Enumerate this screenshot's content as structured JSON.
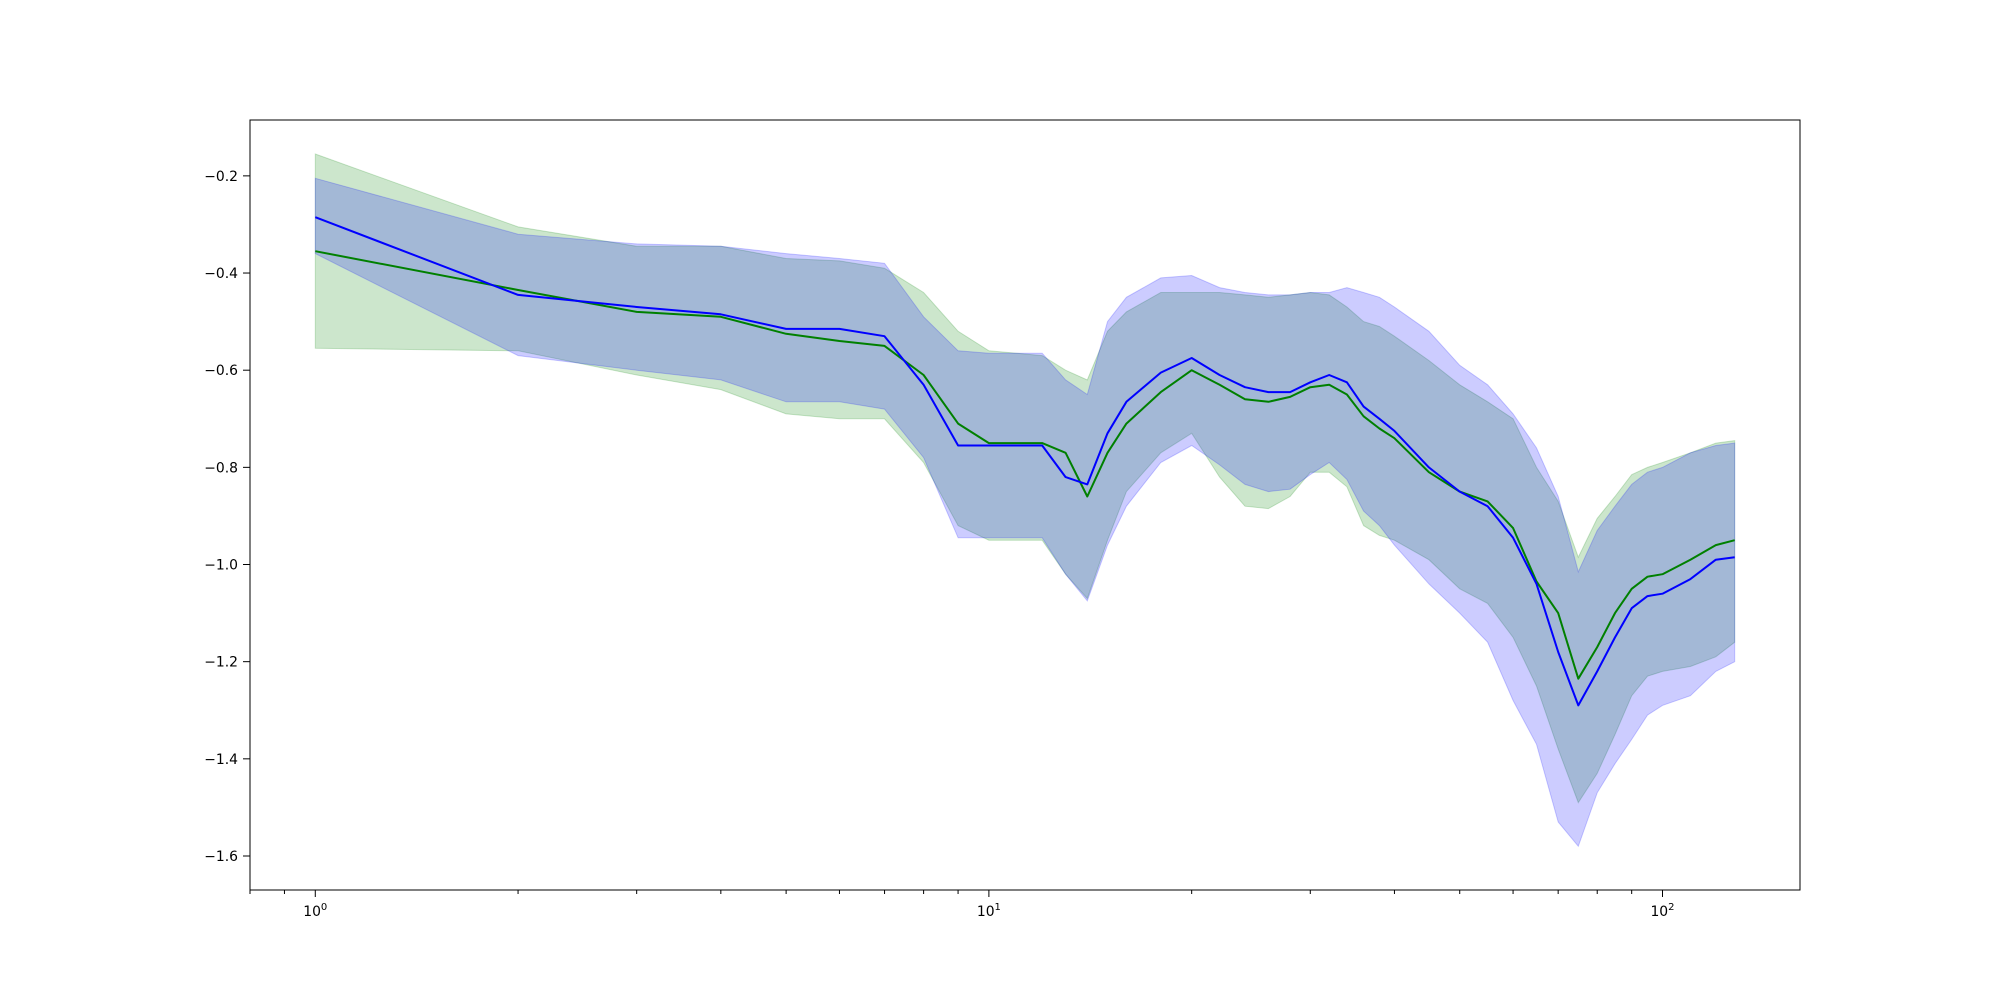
{
  "chart_data": {
    "type": "line",
    "title": "",
    "xlabel": "",
    "ylabel": "",
    "xscale": "log",
    "xlim": [
      0.8,
      160
    ],
    "ylim": [
      -1.67,
      -0.085
    ],
    "grid": false,
    "legend": "none",
    "x_ticks": [
      {
        "value": 1,
        "base": "10",
        "exp": "0"
      },
      {
        "value": 10,
        "base": "10",
        "exp": "1"
      },
      {
        "value": 100,
        "base": "10",
        "exp": "2"
      }
    ],
    "y_ticks": [
      {
        "value": -0.2,
        "label": "−0.2"
      },
      {
        "value": -0.4,
        "label": "−0.4"
      },
      {
        "value": -0.6,
        "label": "−0.6"
      },
      {
        "value": -0.8,
        "label": "−0.8"
      },
      {
        "value": -1.0,
        "label": "−1.0"
      },
      {
        "value": -1.2,
        "label": "−1.2"
      },
      {
        "value": -1.4,
        "label": "−1.4"
      },
      {
        "value": -1.6,
        "label": "−1.6"
      }
    ],
    "series": [
      {
        "color": "#008000",
        "band_color": "#008000",
        "band_opacity": 0.2,
        "x": [
          1,
          2,
          3,
          4,
          5,
          6,
          7,
          8,
          9,
          10,
          11,
          12,
          13,
          14,
          15,
          16,
          18,
          20,
          22,
          24,
          26,
          28,
          30,
          32,
          34,
          36,
          38,
          40,
          45,
          50,
          55,
          60,
          65,
          70,
          75,
          80,
          85,
          90,
          95,
          100,
          110,
          120,
          128
        ],
        "y": [
          -0.355,
          -0.435,
          -0.48,
          -0.49,
          -0.525,
          -0.54,
          -0.55,
          -0.61,
          -0.71,
          -0.75,
          -0.75,
          -0.75,
          -0.77,
          -0.86,
          -0.77,
          -0.71,
          -0.645,
          -0.6,
          -0.63,
          -0.66,
          -0.665,
          -0.655,
          -0.635,
          -0.63,
          -0.65,
          -0.695,
          -0.72,
          -0.74,
          -0.81,
          -0.85,
          -0.87,
          -0.925,
          -1.035,
          -1.1,
          -1.235,
          -1.17,
          -1.1,
          -1.05,
          -1.025,
          -1.02,
          -0.99,
          -0.96,
          -0.95
        ],
        "lower": [
          -0.555,
          -0.56,
          -0.61,
          -0.64,
          -0.69,
          -0.7,
          -0.7,
          -0.79,
          -0.92,
          -0.95,
          -0.95,
          -0.95,
          -1.02,
          -1.07,
          -0.95,
          -0.85,
          -0.77,
          -0.73,
          -0.82,
          -0.88,
          -0.885,
          -0.86,
          -0.81,
          -0.81,
          -0.84,
          -0.92,
          -0.94,
          -0.95,
          -0.99,
          -1.05,
          -1.08,
          -1.15,
          -1.25,
          -1.38,
          -1.49,
          -1.43,
          -1.35,
          -1.27,
          -1.23,
          -1.22,
          -1.21,
          -1.19,
          -1.16
        ],
        "upper": [
          -0.155,
          -0.305,
          -0.345,
          -0.345,
          -0.37,
          -0.375,
          -0.39,
          -0.44,
          -0.52,
          -0.56,
          -0.565,
          -0.57,
          -0.6,
          -0.62,
          -0.52,
          -0.48,
          -0.44,
          -0.44,
          -0.44,
          -0.445,
          -0.45,
          -0.445,
          -0.44,
          -0.445,
          -0.47,
          -0.5,
          -0.51,
          -0.53,
          -0.58,
          -0.63,
          -0.665,
          -0.7,
          -0.8,
          -0.87,
          -0.985,
          -0.905,
          -0.86,
          -0.815,
          -0.8,
          -0.79,
          -0.77,
          -0.75,
          -0.745
        ]
      },
      {
        "color": "#0000ff",
        "band_color": "#0000ff",
        "band_opacity": 0.2,
        "x": [
          1,
          2,
          3,
          4,
          5,
          6,
          7,
          8,
          9,
          10,
          11,
          12,
          13,
          14,
          15,
          16,
          18,
          20,
          22,
          24,
          26,
          28,
          30,
          32,
          34,
          36,
          38,
          40,
          45,
          50,
          55,
          60,
          65,
          70,
          75,
          80,
          85,
          90,
          95,
          100,
          110,
          120,
          128
        ],
        "y": [
          -0.285,
          -0.445,
          -0.47,
          -0.485,
          -0.515,
          -0.515,
          -0.53,
          -0.63,
          -0.755,
          -0.755,
          -0.755,
          -0.755,
          -0.82,
          -0.835,
          -0.73,
          -0.665,
          -0.605,
          -0.575,
          -0.61,
          -0.635,
          -0.645,
          -0.645,
          -0.625,
          -0.61,
          -0.625,
          -0.675,
          -0.7,
          -0.725,
          -0.8,
          -0.85,
          -0.88,
          -0.945,
          -1.04,
          -1.18,
          -1.29,
          -1.22,
          -1.15,
          -1.09,
          -1.065,
          -1.06,
          -1.03,
          -0.99,
          -0.985
        ],
        "lower": [
          -0.36,
          -0.57,
          -0.6,
          -0.62,
          -0.665,
          -0.665,
          -0.68,
          -0.78,
          -0.945,
          -0.945,
          -0.945,
          -0.945,
          -1.02,
          -1.075,
          -0.96,
          -0.88,
          -0.79,
          -0.755,
          -0.795,
          -0.835,
          -0.85,
          -0.845,
          -0.815,
          -0.79,
          -0.825,
          -0.89,
          -0.92,
          -0.96,
          -1.04,
          -1.1,
          -1.16,
          -1.28,
          -1.37,
          -1.53,
          -1.58,
          -1.47,
          -1.41,
          -1.36,
          -1.31,
          -1.29,
          -1.27,
          -1.22,
          -1.2
        ],
        "upper": [
          -0.205,
          -0.32,
          -0.34,
          -0.345,
          -0.36,
          -0.37,
          -0.38,
          -0.49,
          -0.56,
          -0.565,
          -0.565,
          -0.565,
          -0.62,
          -0.65,
          -0.5,
          -0.45,
          -0.41,
          -0.405,
          -0.43,
          -0.44,
          -0.445,
          -0.445,
          -0.44,
          -0.44,
          -0.43,
          -0.44,
          -0.45,
          -0.47,
          -0.52,
          -0.59,
          -0.63,
          -0.69,
          -0.76,
          -0.86,
          -1.015,
          -0.93,
          -0.88,
          -0.835,
          -0.81,
          -0.8,
          -0.77,
          -0.755,
          -0.75
        ]
      }
    ]
  }
}
